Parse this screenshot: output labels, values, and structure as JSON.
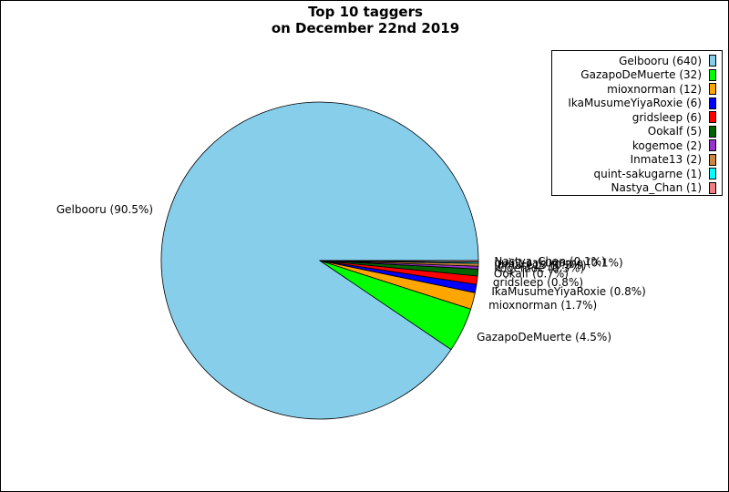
{
  "chart_data": {
    "type": "pie",
    "title": "Top 10 taggers",
    "subtitle": "on December 22nd 2019",
    "legend_position": "top-right",
    "slices": [
      {
        "name": "Gelbooru",
        "value": 640,
        "legend": "Gelbooru (640)",
        "label": "Gelbooru (90.5%)",
        "color": "#87ceeb"
      },
      {
        "name": "GazapoDeMuerte",
        "value": 32,
        "legend": "GazapoDeMuerte (32)",
        "label": "GazapoDeMuerte (4.5%)",
        "color": "#00ff00"
      },
      {
        "name": "mioxnorman",
        "value": 12,
        "legend": "mioxnorman (12)",
        "label": "mioxnorman (1.7%)",
        "color": "#ffa500"
      },
      {
        "name": "IkaMusumeYiyaRoxie",
        "value": 6,
        "legend": "IkaMusumeYiyaRoxie (6)",
        "label": "IkaMusumeYiyaRoxie (0.8%)",
        "color": "#0000ff"
      },
      {
        "name": "gridsleep",
        "value": 6,
        "legend": "gridsleep (6)",
        "label": "gridsleep (0.8%)",
        "color": "#ff0000"
      },
      {
        "name": "Ookalf",
        "value": 5,
        "legend": "Ookalf (5)",
        "label": "Ookalf (0.7%)",
        "color": "#006400"
      },
      {
        "name": "kogemoe",
        "value": 2,
        "legend": "kogemoe (2)",
        "label": "kogemoe (0.3%)",
        "color": "#9932cc"
      },
      {
        "name": "Inmate13",
        "value": 2,
        "legend": "Inmate13 (2)",
        "label": "Inmate13 (0.3%)",
        "color": "#cd853f"
      },
      {
        "name": "quint-sakugarne",
        "value": 1,
        "legend": "quint-sakugarne (1)",
        "label": "quint-sakugarne (0.1%)",
        "color": "#00ffff"
      },
      {
        "name": "Nastya_Chan",
        "value": 1,
        "legend": "Nastya_Chan (1)",
        "label": "Nastya_Chan (0.1%)",
        "color": "#f08080"
      }
    ]
  }
}
